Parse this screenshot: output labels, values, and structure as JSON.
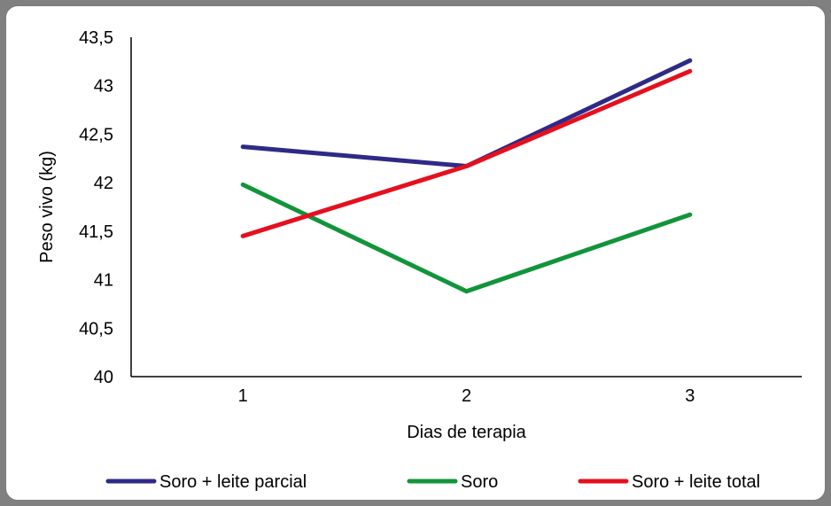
{
  "chart_data": {
    "type": "line",
    "title": "",
    "xlabel": "Dias de terapia",
    "ylabel": "Peso vivo (kg)",
    "categories": [
      "1",
      "2",
      "3"
    ],
    "ylim": [
      40,
      43.5
    ],
    "yticks": [
      40,
      40.5,
      41,
      41.5,
      42,
      42.5,
      43,
      43.5
    ],
    "ytick_labels": [
      "40",
      "40,5",
      "41",
      "41,5",
      "42",
      "42,5",
      "43",
      "43,5"
    ],
    "grid": false,
    "legend": "bottom",
    "series": [
      {
        "name": "Soro + leite parcial",
        "color": "#2e2a86",
        "values": [
          42.37,
          42.17,
          43.26
        ]
      },
      {
        "name": "Soro",
        "color": "#12943a",
        "values": [
          41.98,
          40.88,
          41.67
        ]
      },
      {
        "name": "Soro + leite total",
        "color": "#e5101e",
        "values": [
          41.45,
          42.17,
          43.15
        ]
      }
    ]
  }
}
